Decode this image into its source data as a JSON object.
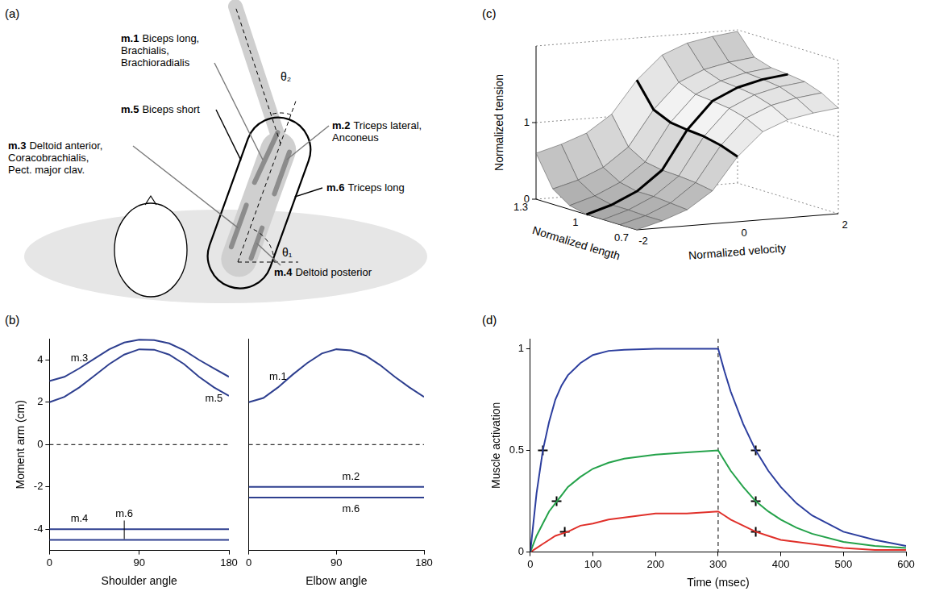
{
  "diagram": {
    "panel": "(a)",
    "muscles": [
      {
        "id": "m.1",
        "lines": [
          "Biceps long,",
          "Brachialis,",
          "Brachioradialis"
        ]
      },
      {
        "id": "m.5",
        "lines": [
          "Biceps short"
        ]
      },
      {
        "id": "m.3",
        "lines": [
          "Deltoid anterior,",
          "Coracobrachialis,",
          "Pect. major clav."
        ]
      },
      {
        "id": "m.2",
        "lines": [
          "Triceps lateral,",
          "Anconeus"
        ]
      },
      {
        "id": "m.6",
        "lines": [
          "Triceps long"
        ]
      },
      {
        "id": "m.4",
        "lines": [
          "Deltoid posterior"
        ]
      }
    ],
    "angles": [
      "θ₁",
      "θ₂"
    ]
  },
  "chart_data": [
    {
      "panel": "(b)",
      "type": "line",
      "xlabel": "Shoulder angle",
      "ylabel": "Moment arm (cm)",
      "x": [
        0,
        15,
        30,
        45,
        60,
        75,
        90,
        105,
        120,
        135,
        150,
        165,
        180
      ],
      "xlim": [
        0,
        180
      ],
      "xticks": [
        0,
        90,
        180
      ],
      "ylim": [
        -5,
        5
      ],
      "yticks": [
        -4,
        -2,
        0,
        2,
        4
      ],
      "grid": false,
      "reference_lines": [
        {
          "y": 0,
          "line_style": "dashed"
        }
      ],
      "series": [
        {
          "name": "m.3",
          "color": "#2e3f8f",
          "values": [
            3.0,
            3.2,
            3.6,
            4.05,
            4.5,
            4.82,
            4.95,
            4.93,
            4.78,
            4.45,
            4.0,
            3.6,
            3.2
          ]
        },
        {
          "name": "m.5",
          "color": "#2e3f8f",
          "values": [
            2.0,
            2.25,
            2.7,
            3.25,
            3.8,
            4.25,
            4.5,
            4.48,
            4.25,
            3.8,
            3.2,
            2.7,
            2.3
          ]
        },
        {
          "name": "m.4",
          "color": "#2e3f8f",
          "values": [
            -4,
            -4,
            -4,
            -4,
            -4,
            -4,
            -4,
            -4,
            -4,
            -4,
            -4,
            -4,
            -4
          ]
        },
        {
          "name": "m.6",
          "color": "#2e3f8f",
          "values": [
            -4.5,
            -4.5,
            -4.5,
            -4.5,
            -4.5,
            -4.5,
            -4.5,
            -4.5,
            -4.5,
            -4.5,
            -4.5,
            -4.5,
            -4.5
          ]
        }
      ]
    },
    {
      "type": "line",
      "xlabel": "Elbow angle",
      "x": [
        0,
        15,
        30,
        45,
        60,
        75,
        90,
        105,
        120,
        135,
        150,
        165,
        180
      ],
      "xlim": [
        0,
        180
      ],
      "xticks": [
        0,
        90,
        180
      ],
      "ylim": [
        -5,
        5
      ],
      "tick_labels": "x",
      "grid": false,
      "reference_lines": [
        {
          "y": 0,
          "line_style": "dashed"
        }
      ],
      "series": [
        {
          "name": "m.1",
          "color": "#2e3f8f",
          "values": [
            2.0,
            2.2,
            2.7,
            3.3,
            3.85,
            4.3,
            4.5,
            4.45,
            4.2,
            3.75,
            3.2,
            2.7,
            2.25
          ]
        },
        {
          "name": "m.2",
          "color": "#2e3f8f",
          "values": [
            -2,
            -2,
            -2,
            -2,
            -2,
            -2,
            -2,
            -2,
            -2,
            -2,
            -2,
            -2,
            -2
          ]
        },
        {
          "name": "m.6",
          "color": "#2e3f8f",
          "values": [
            -2.5,
            -2.5,
            -2.5,
            -2.5,
            -2.5,
            -2.5,
            -2.5,
            -2.5,
            -2.5,
            -2.5,
            -2.5,
            -2.5,
            -2.5
          ]
        }
      ]
    },
    {
      "panel": "(c)",
      "type": "surface",
      "xlabel": "Normalized velocity",
      "ylabel": "Normalized length",
      "zlabel": "Normalized tension",
      "x": [
        -2,
        -1.5,
        -1,
        -0.5,
        0,
        0.5,
        1,
        1.5,
        2
      ],
      "y": [
        0.7,
        0.8,
        0.9,
        1,
        1.1,
        1.2,
        1.3
      ],
      "z": [
        [
          0,
          0.09,
          0.21,
          0.43,
          0.85,
          1.15,
          1.28,
          1.34,
          1.38
        ],
        [
          0,
          0.09,
          0.23,
          0.47,
          0.93,
          1.26,
          1.4,
          1.47,
          1.51
        ],
        [
          0,
          0.1,
          0.25,
          0.49,
          0.98,
          1.32,
          1.47,
          1.55,
          1.59
        ],
        [
          0,
          0.1,
          0.25,
          0.5,
          1.0,
          1.35,
          1.5,
          1.58,
          1.62
        ],
        [
          0.05,
          0.15,
          0.3,
          0.54,
          1.03,
          1.37,
          1.52,
          1.6,
          1.64
        ],
        [
          0.2,
          0.29,
          0.43,
          0.67,
          1.13,
          1.46,
          1.6,
          1.67,
          1.71
        ],
        [
          0.6,
          0.69,
          0.81,
          1.03,
          1.45,
          1.75,
          1.88,
          1.94,
          1.98
        ]
      ],
      "xlim": [
        -2,
        2
      ],
      "xticks": [
        -2,
        0,
        2
      ],
      "ylim": [
        0.7,
        1.3
      ],
      "yticks": [
        0.7,
        1,
        1.3
      ],
      "zlim": [
        0,
        2
      ],
      "zticks": [
        0,
        1
      ],
      "highlight": {
        "x": 0,
        "y": 1
      }
    },
    {
      "panel": "(d)",
      "type": "line",
      "xlabel": "Time (msec)",
      "ylabel": "Muscle activation",
      "x": [
        0,
        10,
        20,
        30,
        40,
        50,
        60,
        80,
        100,
        125,
        150,
        200,
        250,
        300,
        310,
        320,
        340,
        360,
        380,
        400,
        425,
        450,
        500,
        550,
        600
      ],
      "xlim": [
        0,
        600
      ],
      "xticks": [
        0,
        100,
        200,
        300,
        400,
        500,
        600
      ],
      "ylim": [
        0,
        1.05
      ],
      "yticks": [
        0,
        0.5,
        1
      ],
      "grid": false,
      "reference_lines": [
        {
          "x": 300,
          "line_style": "dashed"
        }
      ],
      "series": [
        {
          "color": "#2c3e9e",
          "values": [
            0,
            0.29,
            0.5,
            0.64,
            0.75,
            0.82,
            0.87,
            0.93,
            0.97,
            0.99,
            0.995,
            1,
            1,
            1,
            0.89,
            0.79,
            0.63,
            0.5,
            0.4,
            0.32,
            0.24,
            0.18,
            0.1,
            0.06,
            0.03
          ]
        },
        {
          "color": "#24a24a",
          "values": [
            0,
            0.08,
            0.14,
            0.2,
            0.24,
            0.28,
            0.32,
            0.37,
            0.41,
            0.44,
            0.46,
            0.48,
            0.49,
            0.5,
            0.45,
            0.4,
            0.32,
            0.25,
            0.2,
            0.16,
            0.12,
            0.09,
            0.05,
            0.03,
            0.02
          ]
        },
        {
          "color": "#e0302a",
          "values": [
            0,
            0.02,
            0.04,
            0.06,
            0.08,
            0.09,
            0.1,
            0.13,
            0.14,
            0.16,
            0.17,
            0.19,
            0.19,
            0.2,
            0.18,
            0.16,
            0.13,
            0.1,
            0.08,
            0.06,
            0.05,
            0.04,
            0.02,
            0.01,
            0.01
          ]
        },
        {
          "type": "scatter",
          "marker": "cross",
          "color": "#000000",
          "x": [
            20,
            42,
            55,
            360,
            360,
            360
          ],
          "values": [
            0.5,
            0.25,
            0.1,
            0.5,
            0.25,
            0.1
          ]
        }
      ]
    }
  ]
}
